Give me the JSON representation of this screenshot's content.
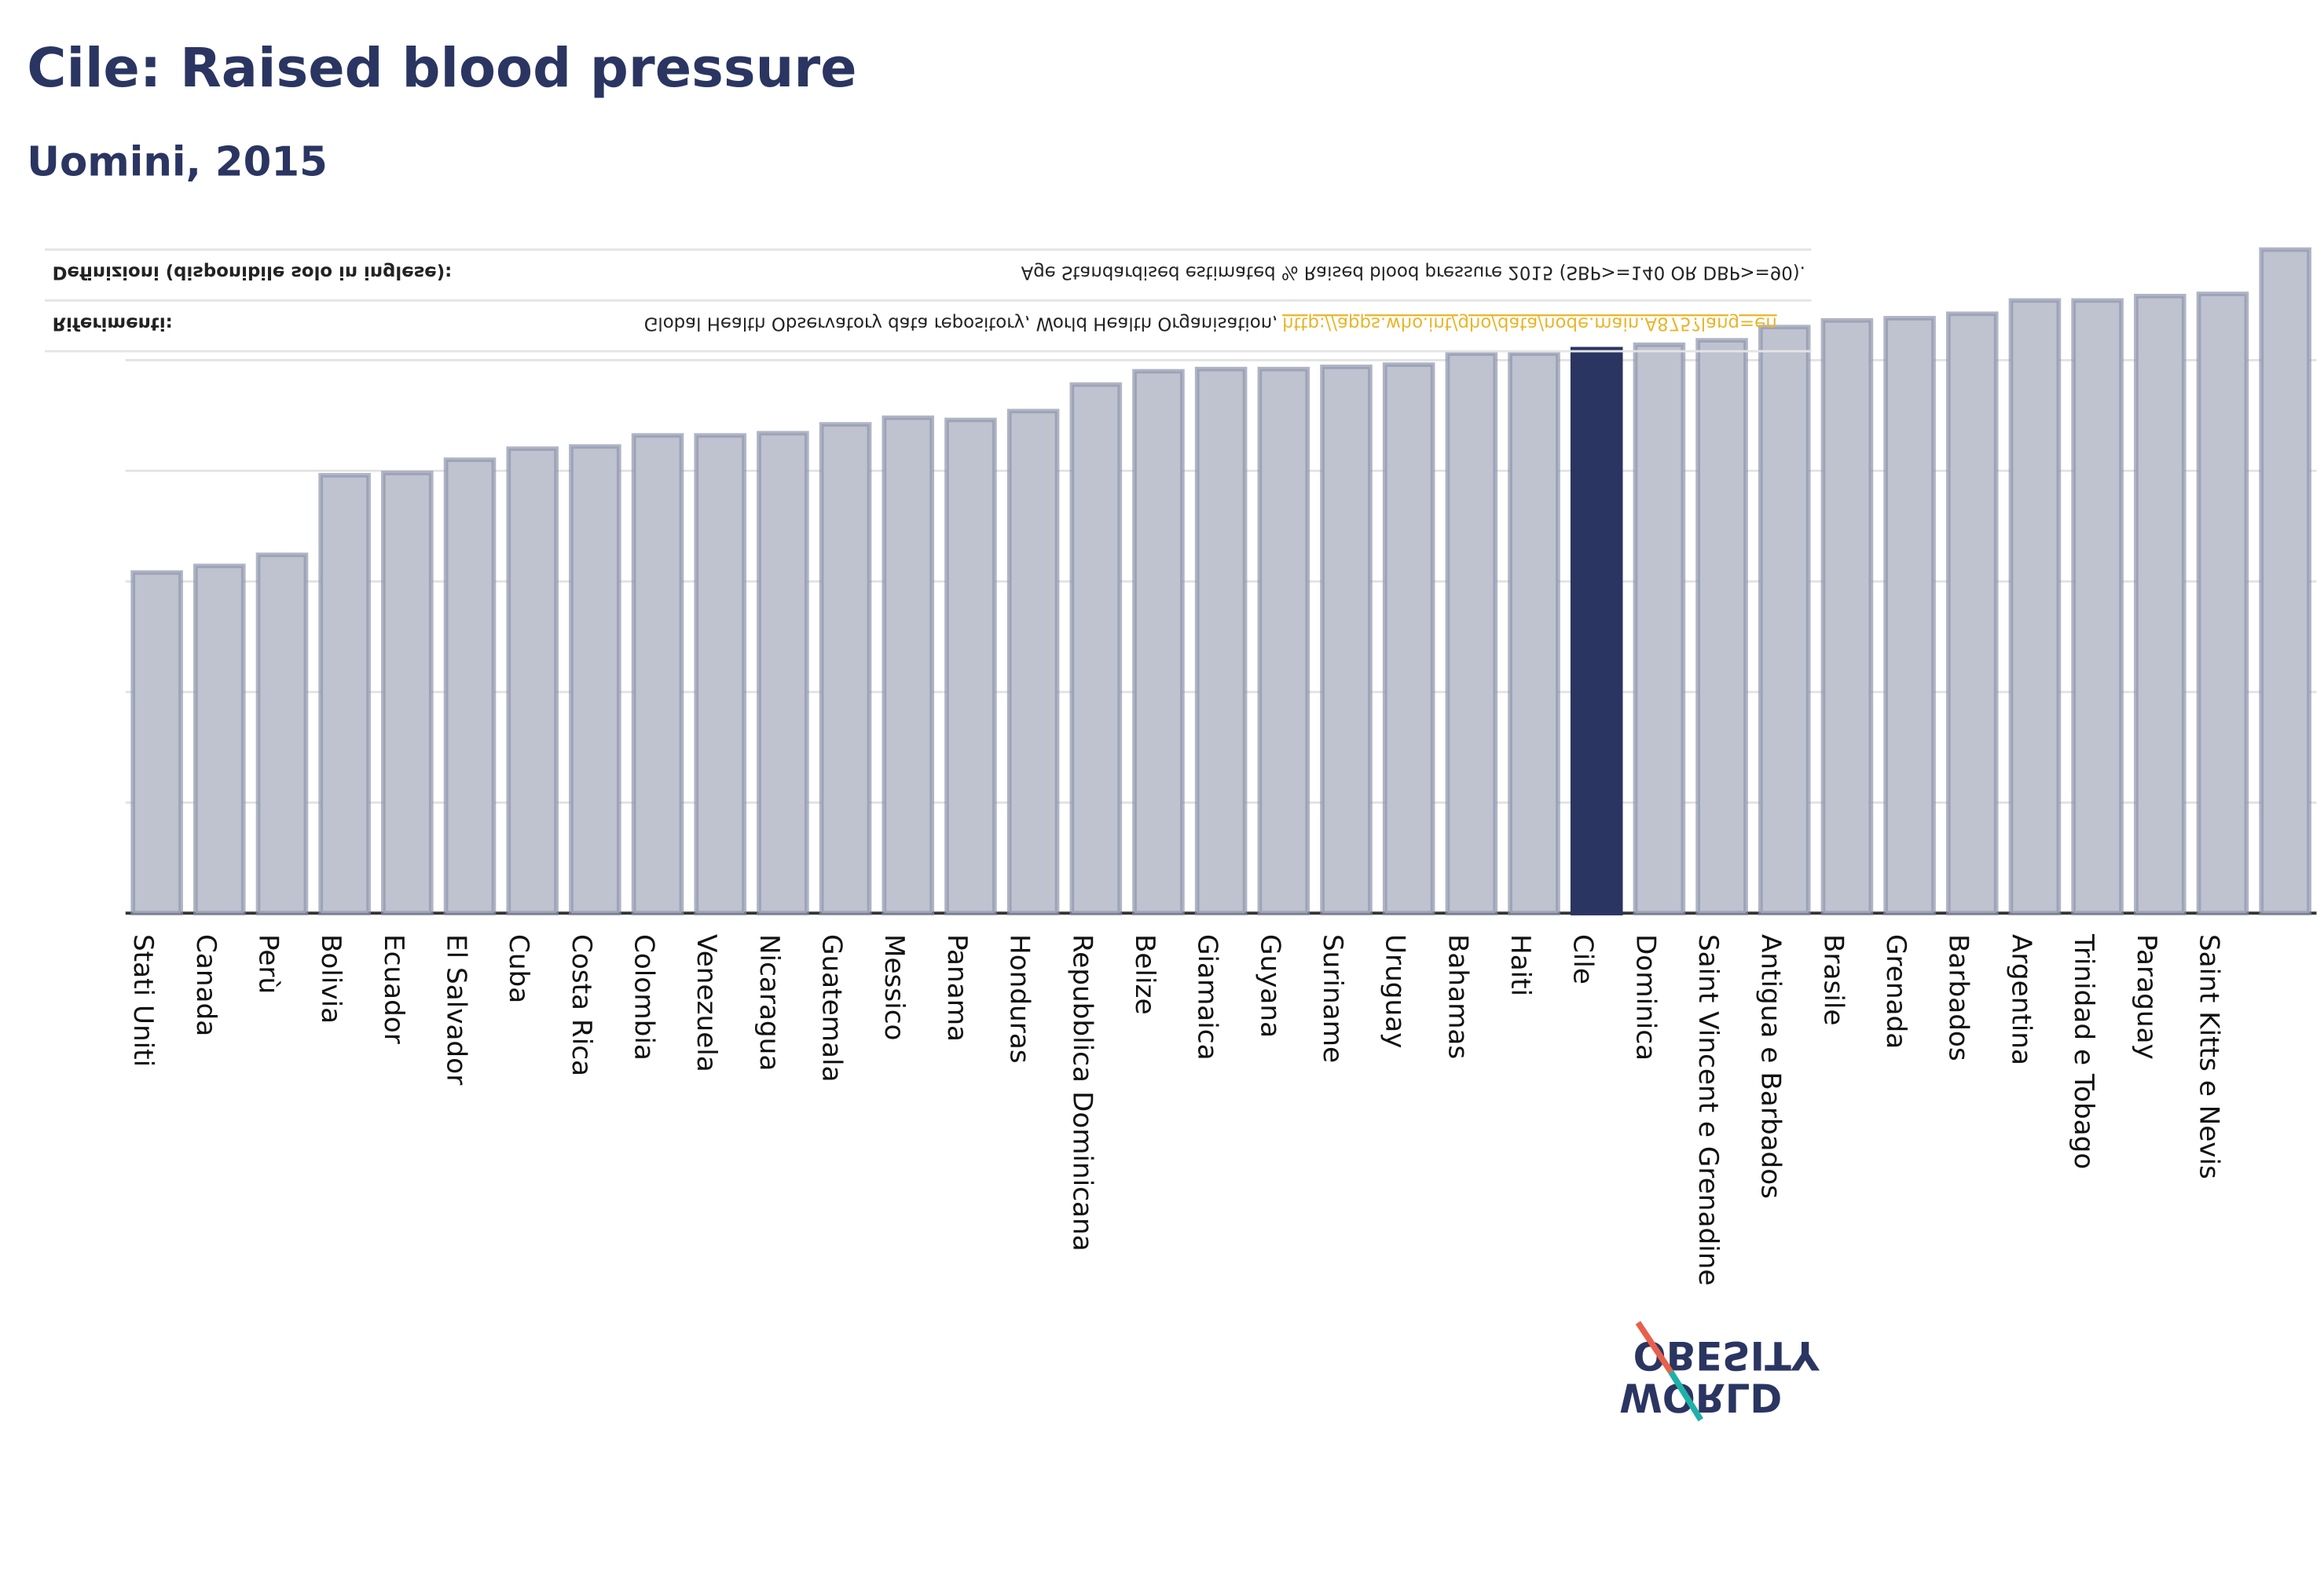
{
  "chart_data": {
    "type": "bar",
    "title": "Cile: Raised blood pressure",
    "subtitle": "Uomini, 2015",
    "categories": [
      "Stati Uniti",
      "Canada",
      "Perù",
      "Bolivia",
      "Ecuador",
      "El Salvador",
      "Cuba",
      "Costa Rica",
      "Colombia",
      "Venezuela",
      "Nicaragua",
      "Guatemala",
      "Messico",
      "Panama",
      "Honduras",
      "Repubblica Dominicana",
      "Belize",
      "Giamaica",
      "Guyana",
      "Suriname",
      "Uruguay",
      "Bahamas",
      "Haiti",
      "Cile",
      "Dominica",
      "Saint Vincent e Grenadine",
      "Antigua e Barbados",
      "Brasile",
      "Grenada",
      "Barbados",
      "Argentina",
      "Trinidad e Tobago",
      "Paraguay",
      "Saint Kitts e Nevis",
      null
    ],
    "values": [
      15.4,
      15.7,
      16.2,
      19.8,
      19.9,
      20.5,
      21.0,
      21.1,
      21.6,
      21.6,
      21.7,
      22.1,
      22.4,
      22.3,
      22.7,
      23.9,
      24.5,
      24.6,
      24.6,
      24.7,
      24.8,
      25.3,
      25.3,
      25.5,
      25.7,
      25.9,
      26.5,
      26.8,
      26.9,
      27.1,
      27.7,
      27.7,
      27.9,
      28.0,
      30.0
    ],
    "color": "#bfc2cf",
    "highlight": "Cile",
    "highlight_color": "#2a3561",
    "ylim": [
      0,
      30
    ],
    "yticks": [
      0,
      5,
      10,
      15,
      20,
      25
    ],
    "grid": true,
    "definitions_label": "Definizioni (disponibile solo in inglese):",
    "definitions_text": "Age Standardised estimated % Raised blood pressure 2015 (SBP>=140 OR DBP>=90).",
    "references_label": "Riferimenti:",
    "references_text": "Global Health Observatory data repository, World Health Organisation,",
    "references_link": "http://apps.who.int/gho/data/node.main.A875?lang=en",
    "logo_top": "OBESITY",
    "logo_bottom": "WORLD"
  }
}
